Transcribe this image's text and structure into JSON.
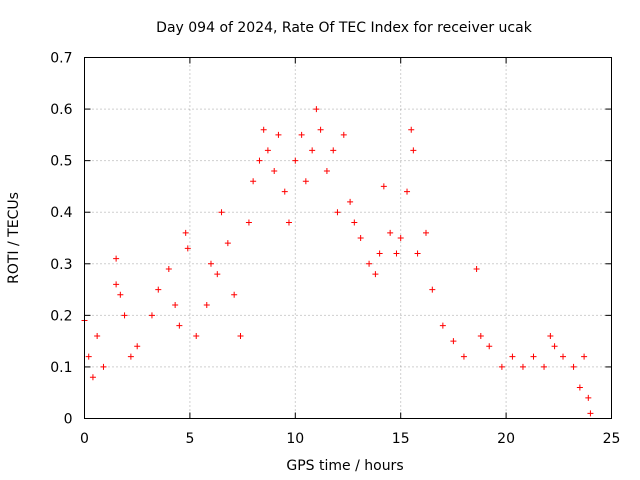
{
  "chart_data": {
    "type": "scatter",
    "title": "Day 094 of 2024, Rate Of TEC Index for receiver ucak",
    "xlabel": "GPS time / hours",
    "ylabel": "ROTI / TECUs",
    "xlim": [
      0,
      25
    ],
    "ylim": [
      0,
      0.7
    ],
    "x_ticks": [
      0,
      5,
      10,
      15,
      20,
      25
    ],
    "x_tick_labels": [
      "0",
      "5",
      "10",
      "15",
      "20",
      "25"
    ],
    "y_ticks": [
      0,
      0.1,
      0.2,
      0.3,
      0.4,
      0.5,
      0.6,
      0.7
    ],
    "y_tick_labels": [
      "0",
      "0.1",
      "0.2",
      "0.3",
      "0.4",
      "0.5",
      "0.6",
      "0.7"
    ],
    "grid": true,
    "marker": "plus",
    "series": [
      {
        "color": "#ff0000",
        "points": [
          [
            0.0,
            0.19
          ],
          [
            0.2,
            0.12
          ],
          [
            0.4,
            0.08
          ],
          [
            0.6,
            0.16
          ],
          [
            0.9,
            0.1
          ],
          [
            1.5,
            0.31
          ],
          [
            1.5,
            0.26
          ],
          [
            1.7,
            0.24
          ],
          [
            1.9,
            0.2
          ],
          [
            2.2,
            0.12
          ],
          [
            2.5,
            0.14
          ],
          [
            3.2,
            0.2
          ],
          [
            3.5,
            0.25
          ],
          [
            4.0,
            0.29
          ],
          [
            4.3,
            0.22
          ],
          [
            4.5,
            0.18
          ],
          [
            4.8,
            0.36
          ],
          [
            4.9,
            0.33
          ],
          [
            5.3,
            0.16
          ],
          [
            5.8,
            0.22
          ],
          [
            6.0,
            0.3
          ],
          [
            6.3,
            0.28
          ],
          [
            6.5,
            0.4
          ],
          [
            6.8,
            0.34
          ],
          [
            7.1,
            0.24
          ],
          [
            7.4,
            0.16
          ],
          [
            7.8,
            0.38
          ],
          [
            8.0,
            0.46
          ],
          [
            8.3,
            0.5
          ],
          [
            8.5,
            0.56
          ],
          [
            8.7,
            0.52
          ],
          [
            9.0,
            0.48
          ],
          [
            9.2,
            0.55
          ],
          [
            9.5,
            0.44
          ],
          [
            9.7,
            0.38
          ],
          [
            10.0,
            0.5
          ],
          [
            10.3,
            0.55
          ],
          [
            10.5,
            0.46
          ],
          [
            10.8,
            0.52
          ],
          [
            11.0,
            0.6
          ],
          [
            11.2,
            0.56
          ],
          [
            11.5,
            0.48
          ],
          [
            11.8,
            0.52
          ],
          [
            12.0,
            0.4
          ],
          [
            12.3,
            0.55
          ],
          [
            12.6,
            0.42
          ],
          [
            12.8,
            0.38
          ],
          [
            13.1,
            0.35
          ],
          [
            13.5,
            0.3
          ],
          [
            13.8,
            0.28
          ],
          [
            14.0,
            0.32
          ],
          [
            14.2,
            0.45
          ],
          [
            14.5,
            0.36
          ],
          [
            14.8,
            0.32
          ],
          [
            15.0,
            0.35
          ],
          [
            15.3,
            0.44
          ],
          [
            15.5,
            0.56
          ],
          [
            15.6,
            0.52
          ],
          [
            15.8,
            0.32
          ],
          [
            16.2,
            0.36
          ],
          [
            16.5,
            0.25
          ],
          [
            17.0,
            0.18
          ],
          [
            17.5,
            0.15
          ],
          [
            18.0,
            0.12
          ],
          [
            18.6,
            0.29
          ],
          [
            18.8,
            0.16
          ],
          [
            19.2,
            0.14
          ],
          [
            19.8,
            0.1
          ],
          [
            20.3,
            0.12
          ],
          [
            20.8,
            0.1
          ],
          [
            21.3,
            0.12
          ],
          [
            21.8,
            0.1
          ],
          [
            22.1,
            0.16
          ],
          [
            22.3,
            0.14
          ],
          [
            22.7,
            0.12
          ],
          [
            23.2,
            0.1
          ],
          [
            23.5,
            0.06
          ],
          [
            23.7,
            0.12
          ],
          [
            23.9,
            0.04
          ],
          [
            24.0,
            0.01
          ]
        ]
      }
    ]
  }
}
